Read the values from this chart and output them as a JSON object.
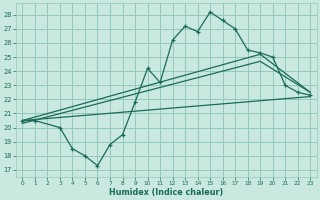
{
  "xlabel": "Humidex (Indice chaleur)",
  "bg_color": "#c8e8e0",
  "grid_color": "#96c8bc",
  "line_color": "#1a6b5a",
  "xlim": [
    -0.5,
    23.5
  ],
  "ylim": [
    16.5,
    28.8
  ],
  "xticks": [
    0,
    1,
    2,
    3,
    4,
    5,
    6,
    7,
    8,
    9,
    10,
    11,
    12,
    13,
    14,
    15,
    16,
    17,
    18,
    19,
    20,
    21,
    22,
    23
  ],
  "yticks": [
    17,
    18,
    19,
    20,
    21,
    22,
    23,
    24,
    25,
    26,
    27,
    28
  ],
  "line1_x": [
    0,
    1,
    3,
    4,
    5,
    6,
    7,
    8,
    9,
    10,
    11,
    12,
    13,
    14,
    15,
    16,
    17,
    18,
    19,
    20,
    21,
    22,
    23
  ],
  "line1_y": [
    20.5,
    20.5,
    20.0,
    18.5,
    18.0,
    17.3,
    18.8,
    19.5,
    21.8,
    24.2,
    23.2,
    26.2,
    27.2,
    26.8,
    28.2,
    27.6,
    27.0,
    25.5,
    25.3,
    25.0,
    23.0,
    22.5,
    22.3
  ],
  "line2_x": [
    0,
    23
  ],
  "line2_y": [
    20.5,
    22.2
  ],
  "line3_x": [
    0,
    19,
    23
  ],
  "line3_y": [
    20.5,
    25.2,
    22.5
  ],
  "line4_x": [
    0,
    19,
    23
  ],
  "line4_y": [
    20.3,
    24.7,
    22.5
  ]
}
